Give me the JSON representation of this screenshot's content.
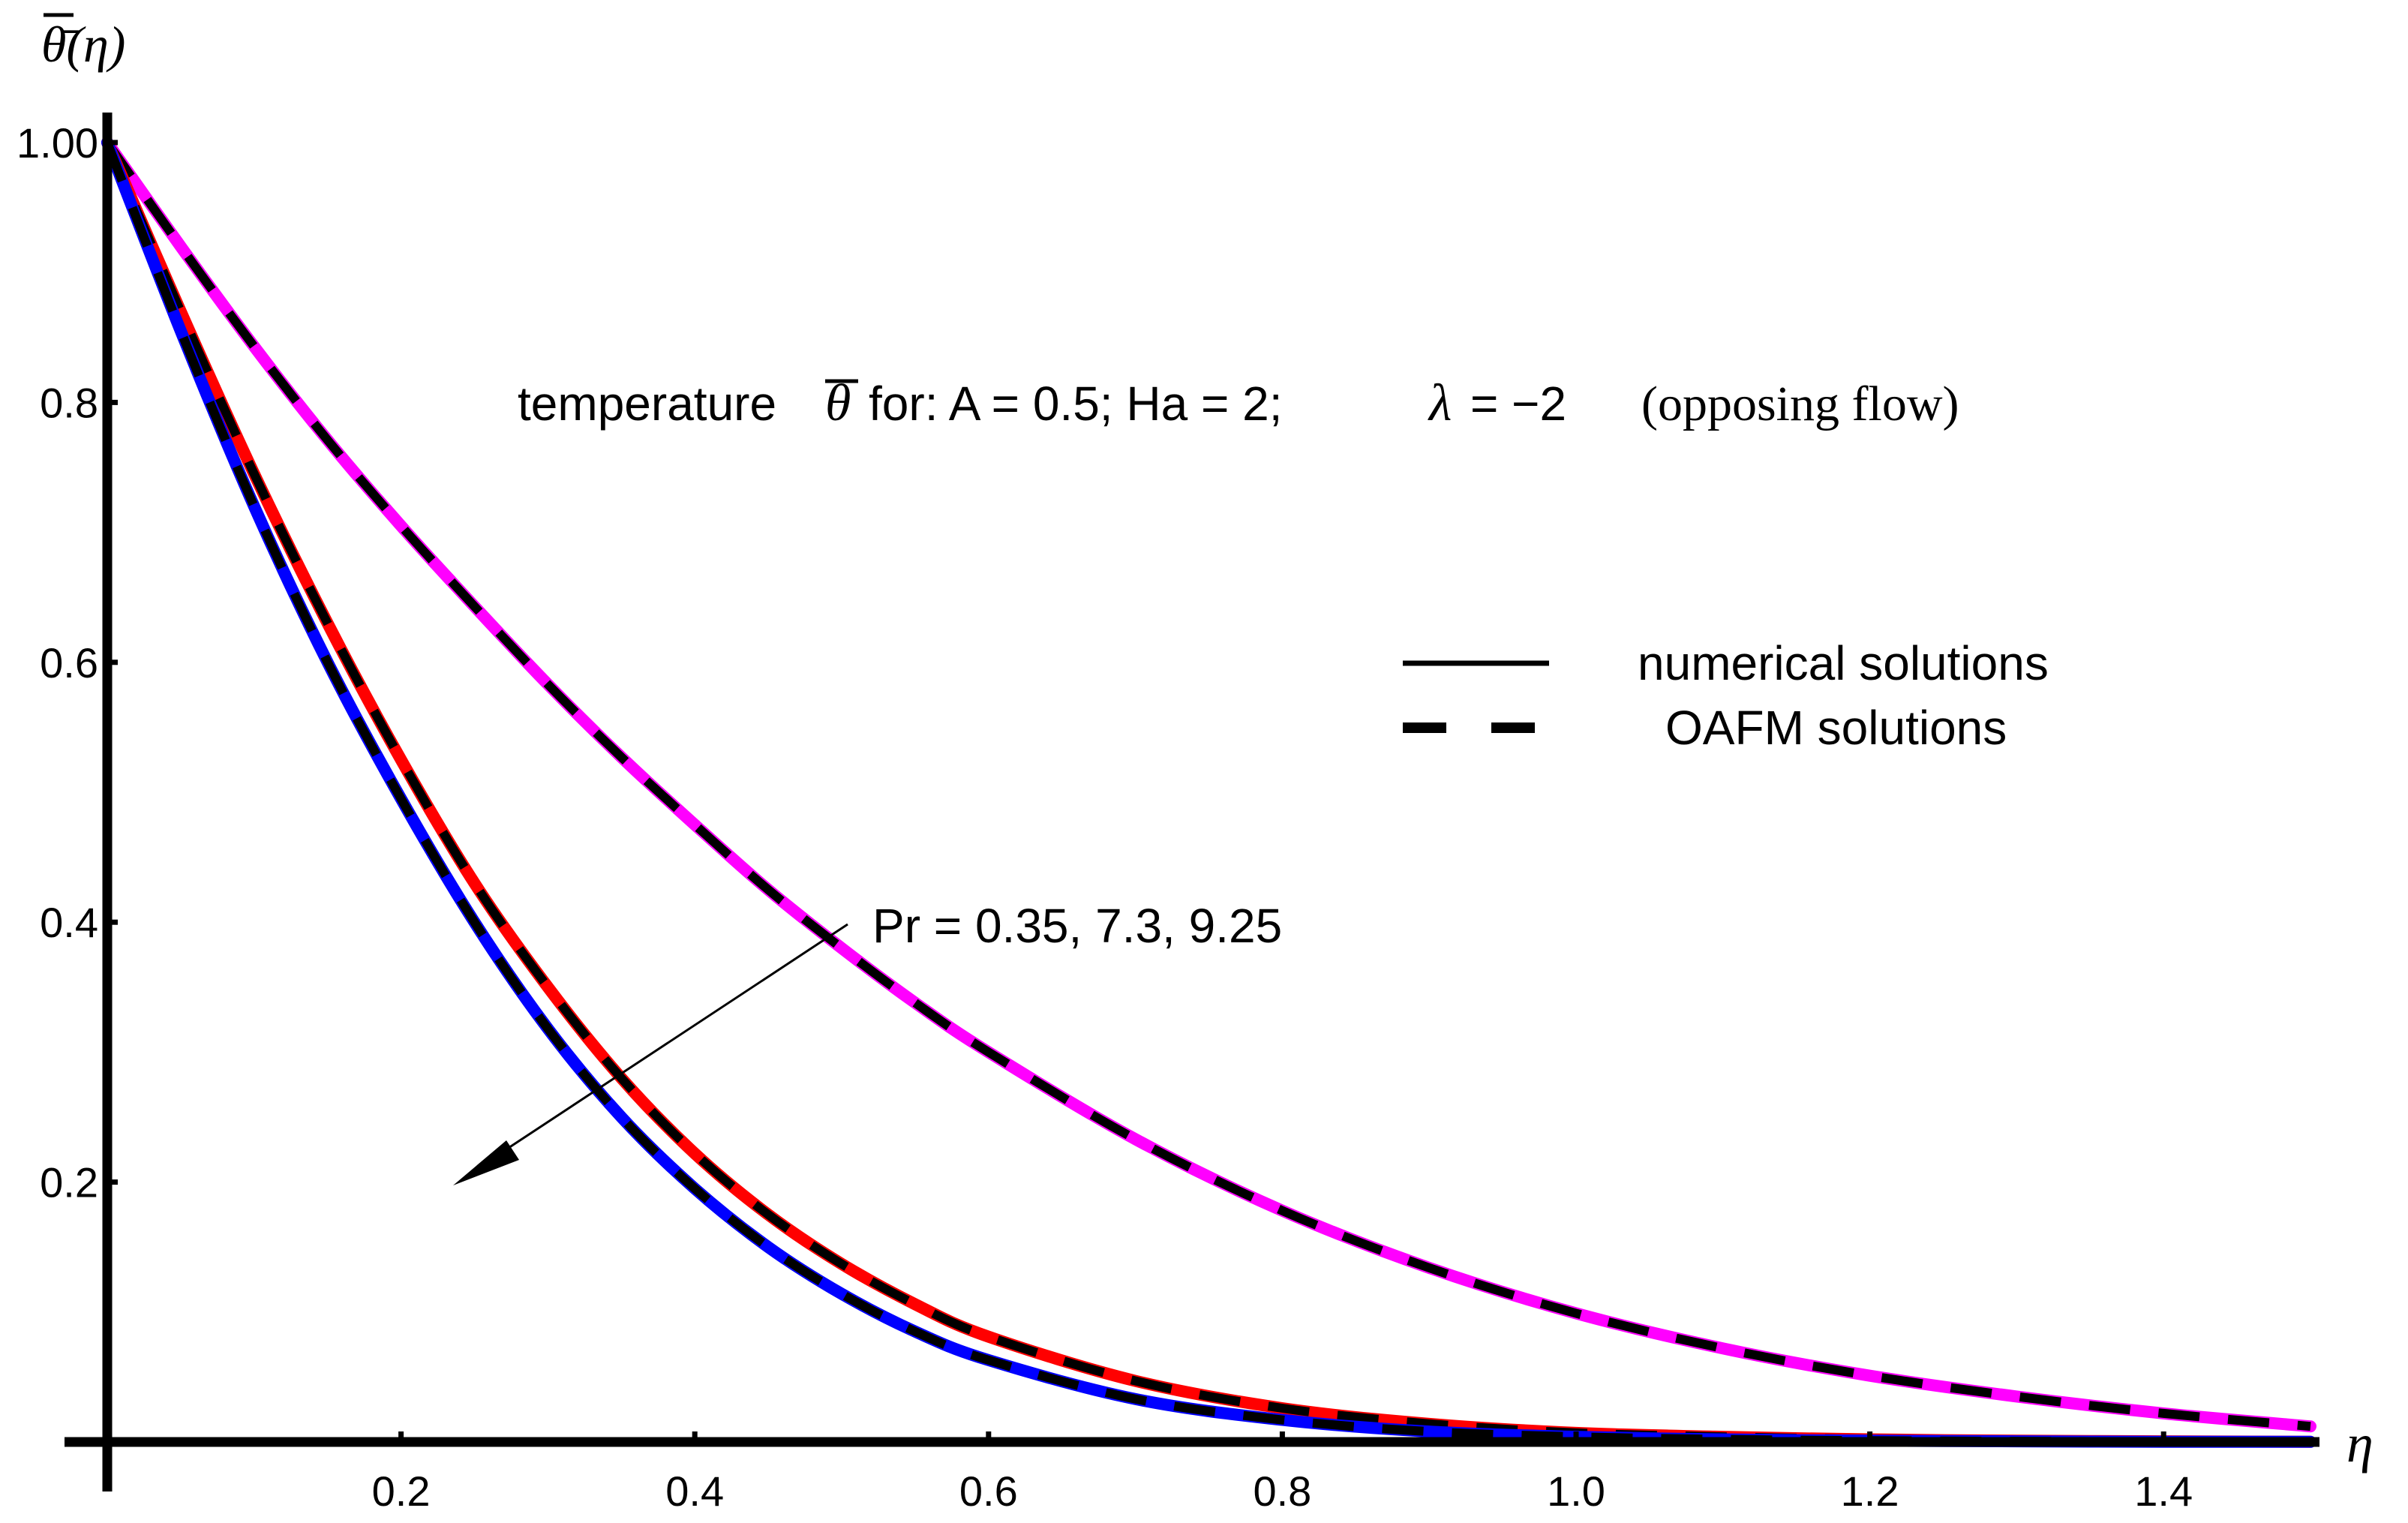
{
  "chart_data": {
    "type": "line",
    "xlabel": "η",
    "ylabel": "θ̄(η)",
    "xlim": [
      0,
      1.5
    ],
    "ylim": [
      0,
      1.0
    ],
    "x_ticks": [
      0.2,
      0.4,
      0.6,
      0.8,
      1.0,
      1.2,
      1.4
    ],
    "x_tick_labels": [
      "0.2",
      "0.4",
      "0.6",
      "0.8",
      "1.0",
      "1.2",
      "1.4"
    ],
    "y_ticks": [
      0.2,
      0.4,
      0.6,
      0.8,
      1.0
    ],
    "y_tick_labels": [
      "0.2",
      "0.4",
      "0.6",
      "0.8",
      "1.00"
    ],
    "title_parts": {
      "prefix": "temperature",
      "theta": "θ",
      "middle": "for: A = 0.5; Ha = 2;",
      "lambda": "λ",
      "suffix": "= −2",
      "paren": "(opposing flow)"
    },
    "legend": {
      "numerical": "numerical solutions",
      "oafm": "OAFM solutions"
    },
    "arrow_label": "Pr = 0.35, 7.3, 9.25",
    "series": [
      {
        "name": "Pr = 0.35",
        "color": "#ff00ff",
        "x": [
          0,
          0.05,
          0.1,
          0.15,
          0.2,
          0.25,
          0.3,
          0.35,
          0.4,
          0.45,
          0.5,
          0.55,
          0.6,
          0.7,
          0.8,
          0.9,
          1.0,
          1.1,
          1.2,
          1.3,
          1.4,
          1.5
        ],
        "values": [
          1.0,
          0.92,
          0.843,
          0.771,
          0.705,
          0.643,
          0.583,
          0.527,
          0.475,
          0.425,
          0.38,
          0.338,
          0.3,
          0.233,
          0.178,
          0.134,
          0.099,
          0.072,
          0.051,
          0.035,
          0.022,
          0.012
        ]
      },
      {
        "name": "Pr = 7.3",
        "color": "#ff0000",
        "x": [
          0,
          0.05,
          0.1,
          0.15,
          0.2,
          0.25,
          0.3,
          0.35,
          0.4,
          0.45,
          0.5,
          0.55,
          0.6,
          0.7,
          0.8,
          0.9,
          1.0,
          1.1,
          1.2,
          1.3,
          1.4,
          1.5
        ],
        "values": [
          1.0,
          0.87,
          0.745,
          0.63,
          0.525,
          0.43,
          0.35,
          0.28,
          0.222,
          0.175,
          0.137,
          0.106,
          0.081,
          0.047,
          0.026,
          0.014,
          0.007,
          0.004,
          0.002,
          0.001,
          0.0005,
          0.0002
        ]
      },
      {
        "name": "Pr = 9.25",
        "color": "#0000ff",
        "x": [
          0,
          0.05,
          0.1,
          0.15,
          0.2,
          0.25,
          0.3,
          0.35,
          0.4,
          0.45,
          0.5,
          0.55,
          0.6,
          0.7,
          0.8,
          0.9,
          1.0,
          1.1,
          1.2,
          1.3,
          1.4,
          1.5
        ],
        "values": [
          1.0,
          0.855,
          0.72,
          0.6,
          0.495,
          0.4,
          0.318,
          0.25,
          0.195,
          0.15,
          0.114,
          0.085,
          0.063,
          0.033,
          0.017,
          0.008,
          0.004,
          0.002,
          0.001,
          0.0005,
          0.0002,
          0.0001
        ]
      }
    ]
  }
}
